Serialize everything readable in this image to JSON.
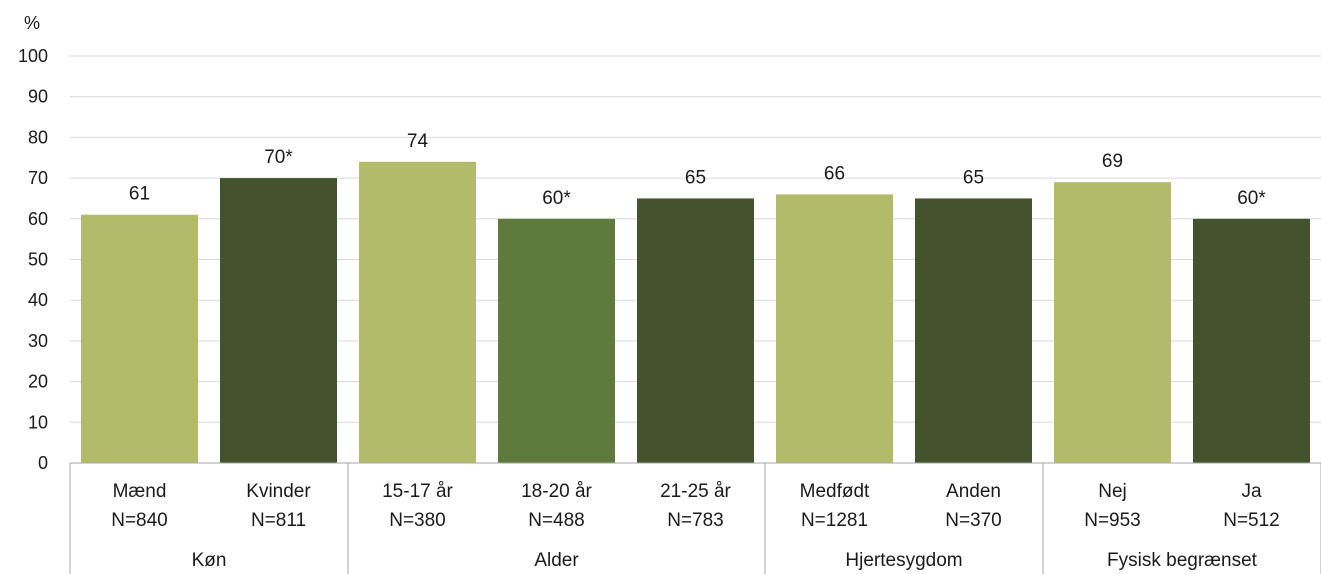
{
  "chart_data": {
    "type": "bar",
    "ylabel": "%",
    "ylim": [
      0,
      100
    ],
    "ytick_step": 10,
    "grid": true,
    "categories": [
      {
        "name": "Mænd",
        "n": "N=840",
        "group": 0,
        "value": 61,
        "label": "61",
        "color": "#b1bb6a"
      },
      {
        "name": "Kvinder",
        "n": "N=811",
        "group": 0,
        "value": 70,
        "label": "70*",
        "color": "#43532d"
      },
      {
        "name": "15-17 år",
        "n": "N=380",
        "group": 1,
        "value": 74,
        "label": "74",
        "color": "#b1bb6a"
      },
      {
        "name": "18-20 år",
        "n": "N=488",
        "group": 1,
        "value": 60,
        "label": "60*",
        "color": "#5e7a3c"
      },
      {
        "name": "21-25 år",
        "n": "N=783",
        "group": 1,
        "value": 65,
        "label": "65",
        "color": "#43532d"
      },
      {
        "name": "Medfødt",
        "n": "N=1281",
        "group": 2,
        "value": 66,
        "label": "66",
        "color": "#b1bb6a"
      },
      {
        "name": "Anden",
        "n": "N=370",
        "group": 2,
        "value": 65,
        "label": "65",
        "color": "#43532d"
      },
      {
        "name": "Nej",
        "n": "N=953",
        "group": 3,
        "value": 69,
        "label": "69",
        "color": "#b1bb6a"
      },
      {
        "name": "Ja",
        "n": "N=512",
        "group": 3,
        "value": 60,
        "label": "60*",
        "color": "#43532d"
      }
    ],
    "groups": [
      "Køn",
      "Alder",
      "Hjertesygdom",
      "Fysisk begrænset"
    ]
  }
}
